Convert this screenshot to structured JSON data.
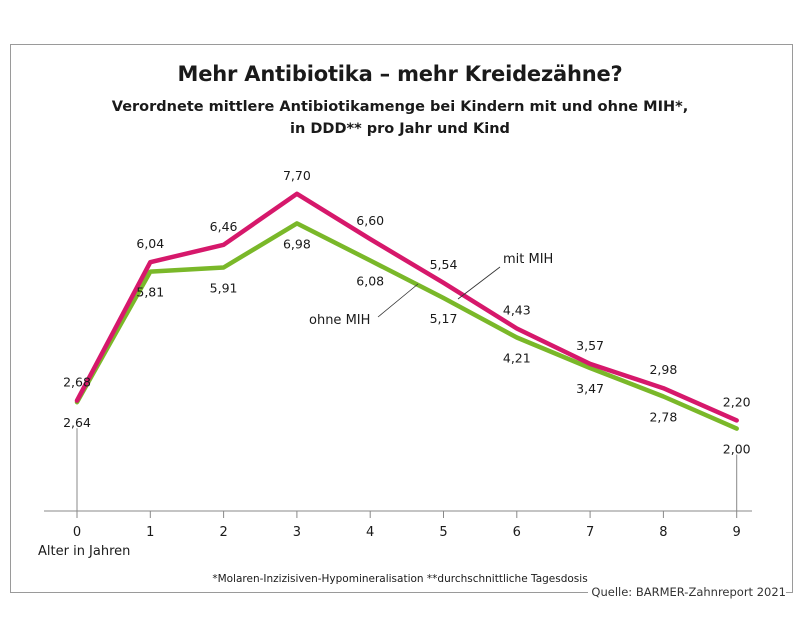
{
  "title": "Mehr Antibiotika – mehr Kreidezähne?",
  "subtitle_line1": "Verordnete mittlere Antibiotikamenge bei Kindern mit und ohne MIH*,",
  "subtitle_line2": "in DDD** pro Jahr und Kind",
  "footnote": "*Molaren-Inzizisiven-Hypomineralisation   **durchschnittliche Tagesdosis",
  "source": "Quelle: BARMER-Zahnreport 2021",
  "colors": {
    "mit_mih": "#d6186b",
    "ohne_mih": "#7ab829",
    "axis": "#888888"
  },
  "chart_data": {
    "type": "line",
    "xlabel": "Alter in Jahren",
    "ylabel": "",
    "x": [
      0,
      1,
      2,
      3,
      4,
      5,
      6,
      7,
      8,
      9
    ],
    "ylim": [
      0,
      9
    ],
    "grid": false,
    "series": [
      {
        "name": "mit MIH",
        "values": [
          2.68,
          6.04,
          6.46,
          7.7,
          6.6,
          5.54,
          4.43,
          3.57,
          2.98,
          2.2
        ],
        "labels": [
          "2,68",
          "6,04",
          "6,46",
          "7,70",
          "6,60",
          "5,54",
          "4,43",
          "3,57",
          "2,98",
          "2,20"
        ]
      },
      {
        "name": "ohne MIH",
        "values": [
          2.64,
          5.81,
          5.91,
          6.98,
          6.08,
          5.17,
          4.21,
          3.47,
          2.78,
          2.0
        ],
        "labels": [
          "2,64",
          "5,81",
          "5,91",
          "6,98",
          "6,08",
          "5,17",
          "4,21",
          "3,47",
          "2,78",
          "2,00"
        ]
      }
    ]
  }
}
